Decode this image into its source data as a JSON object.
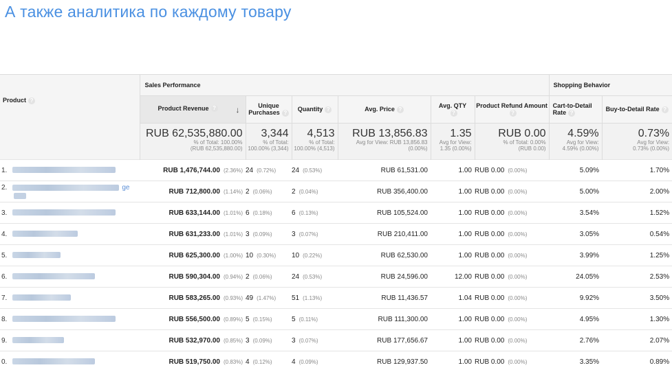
{
  "headline": "А также аналитика по каждому товару",
  "groups": {
    "product": "Product",
    "sales": "Sales Performance",
    "shopping": "Shopping Behavior"
  },
  "columns": {
    "revenue": "Product Revenue",
    "unique": "Unique Purchases",
    "quantity": "Quantity",
    "avg_price": "Avg. Price",
    "avg_qty": "Avg. QTY",
    "refund": "Product Refund Amount",
    "cart": "Cart-to-Detail Rate",
    "buy": "Buy-to-Detail Rate"
  },
  "help_glyph": "?",
  "totals": {
    "revenue": "RUB 62,535,880.00",
    "revenue_sub1": "% of Total: 100.00%",
    "revenue_sub2": "(RUB 62,535,880.00)",
    "unique": "3,344",
    "unique_sub1": "% of Total:",
    "unique_sub2": "100.00% (3,344)",
    "quantity": "4,513",
    "quantity_sub1": "% of Total:",
    "quantity_sub2": "100.00% (4,513)",
    "avg_price": "RUB 13,856.83",
    "avg_price_sub1": "Avg for View: RUB 13,856.83",
    "avg_price_sub2": "(0.00%)",
    "avg_qty": "1.35",
    "avg_qty_sub1": "Avg for View:",
    "avg_qty_sub2": "1.35 (0.00%)",
    "refund": "RUB 0.00",
    "refund_sub1": "% of Total: 0.00%",
    "refund_sub2": "(RUB 0.00)",
    "cart": "4.59%",
    "cart_sub1": "Avg for View:",
    "cart_sub2": "4.59% (0.00%)",
    "buy": "0.73%",
    "buy_sub1": "Avg for View:",
    "buy_sub2": "0.73% (0.00%)"
  },
  "rows": [
    {
      "idx": "1.",
      "revenue": "RUB 1,476,744.00",
      "revenue_pct": "(2.36%)",
      "unique": "24",
      "unique_pct": "(0.72%)",
      "qty": "24",
      "qty_pct": "(0.53%)",
      "avg_price": "RUB 61,531.00",
      "avg_qty": "1.00",
      "refund": "RUB 0.00",
      "refund_pct": "(0.00%)",
      "cart": "5.09%",
      "buy": "1.70%"
    },
    {
      "idx": "2.",
      "trail": "ge",
      "revenue": "RUB 712,800.00",
      "revenue_pct": "(1.14%)",
      "unique": "2",
      "unique_pct": "(0.06%)",
      "qty": "2",
      "qty_pct": "(0.04%)",
      "avg_price": "RUB 356,400.00",
      "avg_qty": "1.00",
      "refund": "RUB 0.00",
      "refund_pct": "(0.00%)",
      "cart": "5.00%",
      "buy": "2.00%"
    },
    {
      "idx": "3.",
      "revenue": "RUB 633,144.00",
      "revenue_pct": "(1.01%)",
      "unique": "6",
      "unique_pct": "(0.18%)",
      "qty": "6",
      "qty_pct": "(0.13%)",
      "avg_price": "RUB 105,524.00",
      "avg_qty": "1.00",
      "refund": "RUB 0.00",
      "refund_pct": "(0.00%)",
      "cart": "3.54%",
      "buy": "1.52%"
    },
    {
      "idx": "4.",
      "revenue": "RUB 631,233.00",
      "revenue_pct": "(1.01%)",
      "unique": "3",
      "unique_pct": "(0.09%)",
      "qty": "3",
      "qty_pct": "(0.07%)",
      "avg_price": "RUB 210,411.00",
      "avg_qty": "1.00",
      "refund": "RUB 0.00",
      "refund_pct": "(0.00%)",
      "cart": "3.05%",
      "buy": "0.54%"
    },
    {
      "idx": "5.",
      "revenue": "RUB 625,300.00",
      "revenue_pct": "(1.00%)",
      "unique": "10",
      "unique_pct": "(0.30%)",
      "qty": "10",
      "qty_pct": "(0.22%)",
      "avg_price": "RUB 62,530.00",
      "avg_qty": "1.00",
      "refund": "RUB 0.00",
      "refund_pct": "(0.00%)",
      "cart": "3.99%",
      "buy": "1.25%"
    },
    {
      "idx": "6.",
      "revenue": "RUB 590,304.00",
      "revenue_pct": "(0.94%)",
      "unique": "2",
      "unique_pct": "(0.06%)",
      "qty": "24",
      "qty_pct": "(0.53%)",
      "avg_price": "RUB 24,596.00",
      "avg_qty": "12.00",
      "refund": "RUB 0.00",
      "refund_pct": "(0.00%)",
      "cart": "24.05%",
      "buy": "2.53%"
    },
    {
      "idx": "7.",
      "revenue": "RUB 583,265.00",
      "revenue_pct": "(0.93%)",
      "unique": "49",
      "unique_pct": "(1.47%)",
      "qty": "51",
      "qty_pct": "(1.13%)",
      "avg_price": "RUB 11,436.57",
      "avg_qty": "1.04",
      "refund": "RUB 0.00",
      "refund_pct": "(0.00%)",
      "cart": "9.92%",
      "buy": "3.50%"
    },
    {
      "idx": "8.",
      "revenue": "RUB 556,500.00",
      "revenue_pct": "(0.89%)",
      "unique": "5",
      "unique_pct": "(0.15%)",
      "qty": "5",
      "qty_pct": "(0.11%)",
      "avg_price": "RUB 111,300.00",
      "avg_qty": "1.00",
      "refund": "RUB 0.00",
      "refund_pct": "(0.00%)",
      "cart": "4.95%",
      "buy": "1.30%"
    },
    {
      "idx": "9.",
      "revenue": "RUB 532,970.00",
      "revenue_pct": "(0.85%)",
      "unique": "3",
      "unique_pct": "(0.09%)",
      "qty": "3",
      "qty_pct": "(0.07%)",
      "avg_price": "RUB 177,656.67",
      "avg_qty": "1.00",
      "refund": "RUB 0.00",
      "refund_pct": "(0.00%)",
      "cart": "2.76%",
      "buy": "2.07%"
    },
    {
      "idx": "0.",
      "revenue": "RUB 519,750.00",
      "revenue_pct": "(0.83%)",
      "unique": "4",
      "unique_pct": "(0.12%)",
      "qty": "4",
      "qty_pct": "(0.09%)",
      "avg_price": "RUB 129,937.50",
      "avg_qty": "1.00",
      "refund": "RUB 0.00",
      "refund_pct": "(0.00%)",
      "cart": "3.35%",
      "buy": "0.89%"
    }
  ]
}
